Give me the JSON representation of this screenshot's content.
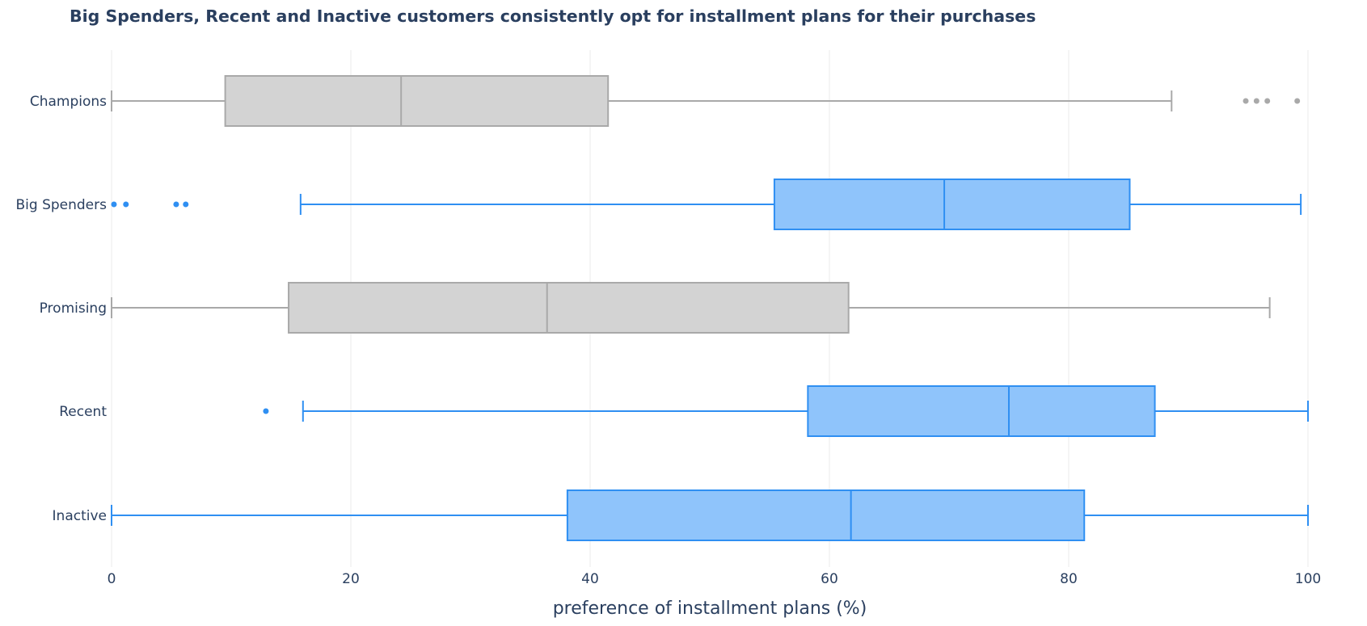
{
  "chart_data": {
    "type": "box",
    "orientation": "horizontal",
    "title": "Big Spenders, Recent and Inactive customers consistently opt for installment plans for their purchases",
    "xlabel": "preference of installment plans (%)",
    "ylabel": "",
    "xlim": [
      0,
      100
    ],
    "x_ticks": [
      0,
      20,
      40,
      60,
      80,
      100
    ],
    "grid": "vertical",
    "legend": "none",
    "colors": {
      "highlight_fill": "#8fc4fb",
      "highlight_line": "#2f8ff2",
      "muted_fill": "#d3d3d3",
      "muted_line": "#a9a9a9",
      "grid": "#ebebeb",
      "text": "#2a3f5f"
    },
    "categories": [
      "Champions",
      "Big Spenders",
      "Promising",
      "Recent",
      "Inactive"
    ],
    "boxes": [
      {
        "category": "Champions",
        "highlight": false,
        "min": 0,
        "q1": 9.5,
        "median": 24.2,
        "q3": 41.5,
        "max": 88.6,
        "outliers": [
          94.8,
          95.7,
          96.6,
          99.1
        ]
      },
      {
        "category": "Big Spenders",
        "highlight": true,
        "min": 15.8,
        "q1": 55.4,
        "median": 69.6,
        "q3": 85.1,
        "max": 99.4,
        "outliers": [
          0.2,
          1.2,
          5.4,
          6.2
        ]
      },
      {
        "category": "Promising",
        "highlight": false,
        "min": 0,
        "q1": 14.8,
        "median": 36.4,
        "q3": 61.6,
        "max": 96.8,
        "outliers": []
      },
      {
        "category": "Recent",
        "highlight": true,
        "min": 16.0,
        "q1": 58.2,
        "median": 75.0,
        "q3": 87.2,
        "max": 100,
        "outliers": [
          12.9
        ]
      },
      {
        "category": "Inactive",
        "highlight": true,
        "min": 0,
        "q1": 38.1,
        "median": 61.8,
        "q3": 81.3,
        "max": 100,
        "outliers": []
      }
    ]
  }
}
